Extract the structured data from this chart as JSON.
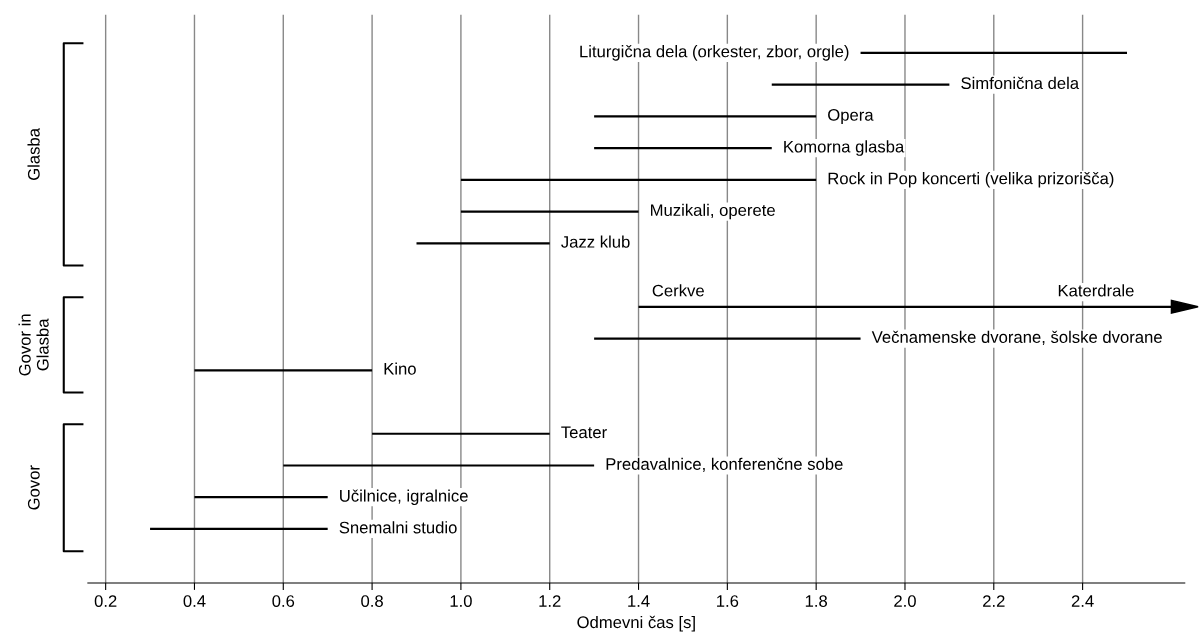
{
  "chart_data": {
    "type": "bar",
    "orientation": "horizontal",
    "xlabel": "Odmevni čas [s]",
    "categories": [
      "Liturgična dela (orkester, zbor, orgle)",
      "Simfonična dela",
      "Opera",
      "Komorna glasba",
      "Rock in Pop koncerti (velika prizorišča)",
      "Muzikali, operete",
      "Jazz klub",
      null,
      "Cerkve",
      "Večnamenske dvorane, šolske dvorane",
      "Kino",
      null,
      "Teater",
      "Predavalnice, konferenčne sobe",
      "Učilnice, igralnice",
      "Snemalni studio"
    ],
    "base": [
      1.9,
      1.7,
      1.3,
      1.3,
      1.0,
      1.0,
      0.9,
      null,
      1.4,
      1.3,
      0.4,
      null,
      0.8,
      0.6,
      0.4,
      0.3
    ],
    "values": [
      0.6,
      0.4,
      0.5,
      0.4,
      0.8,
      0.4,
      0.3,
      null,
      1.2,
      0.6,
      0.4,
      null,
      0.4,
      0.7,
      0.3,
      0.4
    ],
    "color": "#000000",
    "xlim": [
      0.16,
      2.63
    ],
    "xticks": [
      0.2,
      0.4,
      0.6,
      0.8,
      {
        "value": 1,
        "label": "1.0"
      },
      1.2,
      1.4,
      1.6,
      1.8,
      {
        "value": 2,
        "label": "2.0"
      },
      2.2,
      2.4
    ],
    "grid": "x",
    "tick_labels": "x",
    "annotations": [
      "Glasba",
      "Govor in\nGlasba",
      "Govor",
      {
        "text": "Katerdrale",
        "x": 2.43,
        "y": "Cerkve"
      }
    ]
  }
}
